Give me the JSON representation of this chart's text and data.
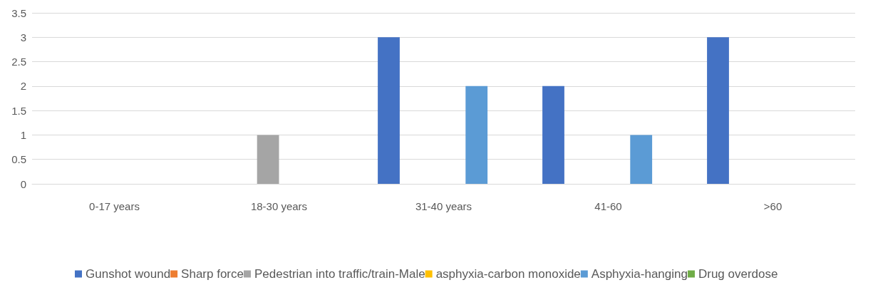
{
  "chart_data": {
    "type": "bar",
    "categories": [
      "0-17 years",
      "18-30 years",
      "31-40 years",
      "41-60",
      ">60"
    ],
    "series": [
      {
        "name": "Gunshot wound",
        "color": "#4472c4",
        "values": [
          0,
          0,
          3,
          2,
          3
        ]
      },
      {
        "name": "Sharp force",
        "color": "#ed7d31",
        "values": [
          0,
          0,
          0,
          0,
          0
        ]
      },
      {
        "name": "Pedestrian into traffic/train-Male",
        "color": "#a5a5a5",
        "values": [
          0,
          1,
          0,
          0,
          0
        ]
      },
      {
        "name": "asphyxia-carbon monoxide",
        "color": "#ffc000",
        "values": [
          0,
          0,
          0,
          0,
          0
        ]
      },
      {
        "name": "Asphyxia-hanging",
        "color": "#5b9bd5",
        "values": [
          0,
          0,
          2,
          1,
          0
        ]
      },
      {
        "name": "Drug overdose",
        "color": "#70ad47",
        "values": [
          0,
          0,
          0,
          0,
          0
        ]
      }
    ],
    "ylim": [
      0,
      3.5
    ],
    "yticks": [
      0,
      0.5,
      1,
      1.5,
      2,
      2.5,
      3,
      3.5
    ],
    "grid": "y",
    "legend": "bottom"
  }
}
